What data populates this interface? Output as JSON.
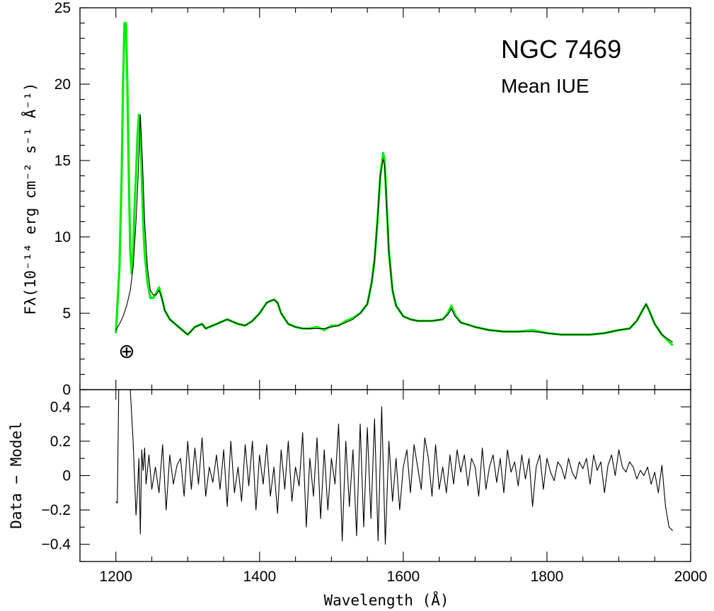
{
  "chart_data": [
    {
      "type": "line",
      "panel": "upper",
      "title": "NGC 7469",
      "subtitle": "Mean IUE",
      "ylabel": "Fλ(10⁻¹⁴ erg cm⁻² s⁻¹ Å⁻¹)",
      "xlim": [
        1150,
        2000
      ],
      "ylim": [
        0,
        25
      ],
      "y_ticks": [
        0,
        5,
        10,
        15,
        20,
        25
      ],
      "annotation_symbol": "⊕",
      "annotation_symbol_at": [
        1215,
        2.5
      ],
      "series": [
        {
          "role": "data",
          "color": "#00ee00",
          "x": [
            1200,
            1205,
            1208,
            1210,
            1212,
            1214,
            1216,
            1218,
            1220,
            1222,
            1224,
            1226,
            1228,
            1230,
            1232,
            1234,
            1236,
            1238,
            1240,
            1244,
            1248,
            1252,
            1256,
            1260,
            1264,
            1268,
            1275,
            1285,
            1295,
            1300,
            1310,
            1320,
            1325,
            1330,
            1340,
            1355,
            1370,
            1380,
            1390,
            1400,
            1410,
            1420,
            1425,
            1430,
            1440,
            1450,
            1460,
            1470,
            1480,
            1490,
            1500,
            1510,
            1520,
            1530,
            1540,
            1550,
            1556,
            1560,
            1564,
            1568,
            1572,
            1574,
            1576,
            1580,
            1585,
            1590,
            1600,
            1610,
            1620,
            1640,
            1655,
            1662,
            1667,
            1672,
            1680,
            1700,
            1720,
            1740,
            1760,
            1780,
            1800,
            1820,
            1840,
            1860,
            1880,
            1900,
            1915,
            1925,
            1933,
            1938,
            1943,
            1950,
            1960,
            1975
          ],
          "y": [
            3.7,
            8,
            14,
            20,
            24,
            24,
            20,
            14,
            9,
            7.6,
            9,
            12,
            14,
            16.5,
            18,
            17,
            14,
            11,
            9,
            7,
            6,
            6,
            6.3,
            6.7,
            6,
            5.2,
            4.6,
            4.2,
            3.8,
            3.6,
            4.1,
            4.3,
            4.0,
            4.1,
            4.3,
            4.6,
            4.3,
            4.2,
            4.5,
            5.0,
            5.7,
            5.9,
            5.7,
            5.0,
            4.3,
            4.1,
            4.0,
            4.0,
            4.1,
            3.9,
            4.2,
            4.2,
            4.5,
            4.7,
            5.0,
            5.6,
            7.0,
            8.5,
            11,
            14,
            15.5,
            15,
            13,
            9,
            6.5,
            5.5,
            4.8,
            4.6,
            4.5,
            4.5,
            4.6,
            5.0,
            5.5,
            4.9,
            4.4,
            4.1,
            3.9,
            3.8,
            3.8,
            3.9,
            3.7,
            3.6,
            3.6,
            3.6,
            3.7,
            3.9,
            4.0,
            4.5,
            5.2,
            5.6,
            5.1,
            4.3,
            3.6,
            2.9
          ]
        },
        {
          "role": "model",
          "color": "#000000",
          "x": [
            1200,
            1205,
            1210,
            1215,
            1220,
            1224,
            1228,
            1231,
            1234,
            1237,
            1240,
            1244,
            1248,
            1252,
            1256,
            1260,
            1264,
            1268,
            1275,
            1285,
            1295,
            1300,
            1310,
            1320,
            1325,
            1330,
            1340,
            1355,
            1370,
            1380,
            1390,
            1400,
            1410,
            1420,
            1425,
            1430,
            1440,
            1450,
            1460,
            1470,
            1480,
            1490,
            1500,
            1510,
            1520,
            1530,
            1540,
            1550,
            1556,
            1560,
            1564,
            1568,
            1572,
            1574,
            1576,
            1580,
            1585,
            1590,
            1600,
            1610,
            1620,
            1640,
            1655,
            1662,
            1667,
            1672,
            1680,
            1700,
            1720,
            1740,
            1760,
            1780,
            1800,
            1820,
            1840,
            1860,
            1880,
            1900,
            1915,
            1925,
            1933,
            1938,
            1943,
            1950,
            1960,
            1975
          ],
          "y": [
            3.9,
            4.3,
            4.8,
            5.5,
            6.5,
            8.0,
            11,
            14,
            18,
            15,
            11,
            8,
            6.5,
            6.2,
            6.2,
            6.5,
            6.0,
            5.2,
            4.6,
            4.2,
            3.8,
            3.6,
            4.1,
            4.3,
            4.0,
            4.1,
            4.3,
            4.6,
            4.3,
            4.2,
            4.5,
            5.0,
            5.7,
            5.9,
            5.7,
            5.0,
            4.3,
            4.1,
            4.0,
            4.0,
            4.0,
            4.0,
            4.1,
            4.2,
            4.4,
            4.6,
            5.0,
            5.6,
            7.0,
            8.5,
            11,
            14,
            15.1,
            14.7,
            13,
            9,
            6.5,
            5.5,
            4.8,
            4.6,
            4.5,
            4.5,
            4.6,
            4.9,
            5.3,
            4.8,
            4.4,
            4.1,
            3.9,
            3.8,
            3.8,
            3.8,
            3.7,
            3.6,
            3.6,
            3.6,
            3.7,
            3.9,
            4.0,
            4.5,
            5.2,
            5.6,
            5.1,
            4.3,
            3.6,
            3.1
          ]
        }
      ]
    },
    {
      "type": "line",
      "panel": "lower",
      "xlabel": "Wavelength (Å)",
      "ylabel": "Data − Model",
      "xlim": [
        1150,
        2000
      ],
      "ylim": [
        -0.5,
        0.5
      ],
      "x_ticks": [
        1200,
        1400,
        1600,
        1800,
        2000
      ],
      "y_ticks": [
        -0.4,
        -0.2,
        0,
        0.2,
        0.4
      ],
      "y_tick_labels": [
        "−0.4",
        "−0.2",
        "0",
        "0.2",
        "0.4"
      ],
      "series": [
        {
          "role": "residual",
          "color": "#000000",
          "x": [
            1200,
            1202,
            1204,
            1206,
            1208,
            1212,
            1216,
            1220,
            1224,
            1228,
            1230,
            1232,
            1234,
            1236,
            1238,
            1240,
            1242,
            1246,
            1250,
            1255,
            1260,
            1265,
            1270,
            1275,
            1280,
            1285,
            1290,
            1295,
            1300,
            1305,
            1310,
            1315,
            1320,
            1325,
            1330,
            1335,
            1340,
            1345,
            1350,
            1355,
            1360,
            1365,
            1370,
            1375,
            1380,
            1385,
            1390,
            1395,
            1400,
            1405,
            1410,
            1415,
            1420,
            1425,
            1430,
            1435,
            1440,
            1445,
            1450,
            1455,
            1460,
            1465,
            1470,
            1475,
            1480,
            1485,
            1490,
            1495,
            1500,
            1505,
            1510,
            1515,
            1520,
            1525,
            1530,
            1535,
            1540,
            1545,
            1550,
            1555,
            1560,
            1565,
            1570,
            1575,
            1580,
            1585,
            1590,
            1595,
            1600,
            1605,
            1610,
            1615,
            1620,
            1625,
            1630,
            1635,
            1640,
            1645,
            1650,
            1655,
            1660,
            1665,
            1670,
            1675,
            1680,
            1685,
            1690,
            1695,
            1700,
            1705,
            1710,
            1715,
            1720,
            1725,
            1730,
            1735,
            1740,
            1745,
            1750,
            1755,
            1760,
            1765,
            1770,
            1775,
            1780,
            1785,
            1790,
            1795,
            1800,
            1805,
            1810,
            1815,
            1820,
            1825,
            1830,
            1835,
            1840,
            1845,
            1850,
            1855,
            1860,
            1865,
            1870,
            1875,
            1880,
            1885,
            1890,
            1895,
            1900,
            1905,
            1910,
            1915,
            1920,
            1925,
            1930,
            1935,
            1940,
            1945,
            1950,
            1955,
            1960,
            1965,
            1970,
            1975
          ],
          "y": [
            -0.15,
            -0.16,
            0.5,
            0.5,
            0.5,
            0.5,
            0.5,
            0.5,
            0.2,
            -0.23,
            -0.1,
            0.1,
            -0.34,
            0.15,
            0.03,
            0.16,
            -0.05,
            0.12,
            -0.08,
            0.05,
            -0.1,
            0.18,
            -0.2,
            0.12,
            -0.05,
            0.06,
            0.1,
            -0.12,
            0.2,
            -0.08,
            0.16,
            -0.05,
            0.22,
            -0.12,
            0.05,
            -0.04,
            0.12,
            -0.08,
            0.15,
            -0.18,
            0.2,
            -0.1,
            0.05,
            -0.15,
            0.18,
            -0.06,
            0.2,
            -0.2,
            0.12,
            -0.05,
            0.18,
            -0.12,
            0.05,
            -0.22,
            0.15,
            -0.08,
            0.2,
            -0.15,
            0.05,
            -0.06,
            0.25,
            -0.3,
            0.1,
            -0.12,
            0.22,
            -0.25,
            0.15,
            -0.2,
            0.1,
            -0.05,
            0.3,
            -0.38,
            0.2,
            -0.18,
            0.15,
            -0.35,
            0.3,
            -0.3,
            0.28,
            -0.25,
            0.33,
            -0.38,
            0.4,
            -0.4,
            0.2,
            -0.15,
            0.1,
            -0.2,
            0.05,
            0.15,
            -0.1,
            0.18,
            0.05,
            -0.08,
            0.22,
            0.1,
            -0.12,
            0.18,
            -0.08,
            0.05,
            -0.1,
            0.12,
            -0.05,
            0.15,
            0.02,
            0.12,
            -0.06,
            0.1,
            0.05,
            -0.12,
            0.16,
            -0.08,
            0.05,
            0.12,
            -0.04,
            0.1,
            -0.1,
            0.15,
            0.02,
            0.08,
            -0.06,
            0.12,
            -0.02,
            0.1,
            -0.18,
            0.05,
            0.12,
            -0.08,
            0.1,
            0.02,
            -0.03,
            0.08,
            0.05,
            -0.02,
            0.1,
            0.02,
            -0.02,
            0.08,
            0.04,
            0.1,
            -0.05,
            0.12,
            0.03,
            0.08,
            -0.1,
            0.06,
            0.12,
            0.0,
            0.15,
            0.05,
            0.02,
            0.08,
            0.05,
            -0.02,
            0.03,
            0.0,
            0.05,
            -0.05,
            0.02,
            -0.1,
            0.06,
            -0.18,
            -0.3,
            -0.32
          ]
        }
      ]
    }
  ]
}
